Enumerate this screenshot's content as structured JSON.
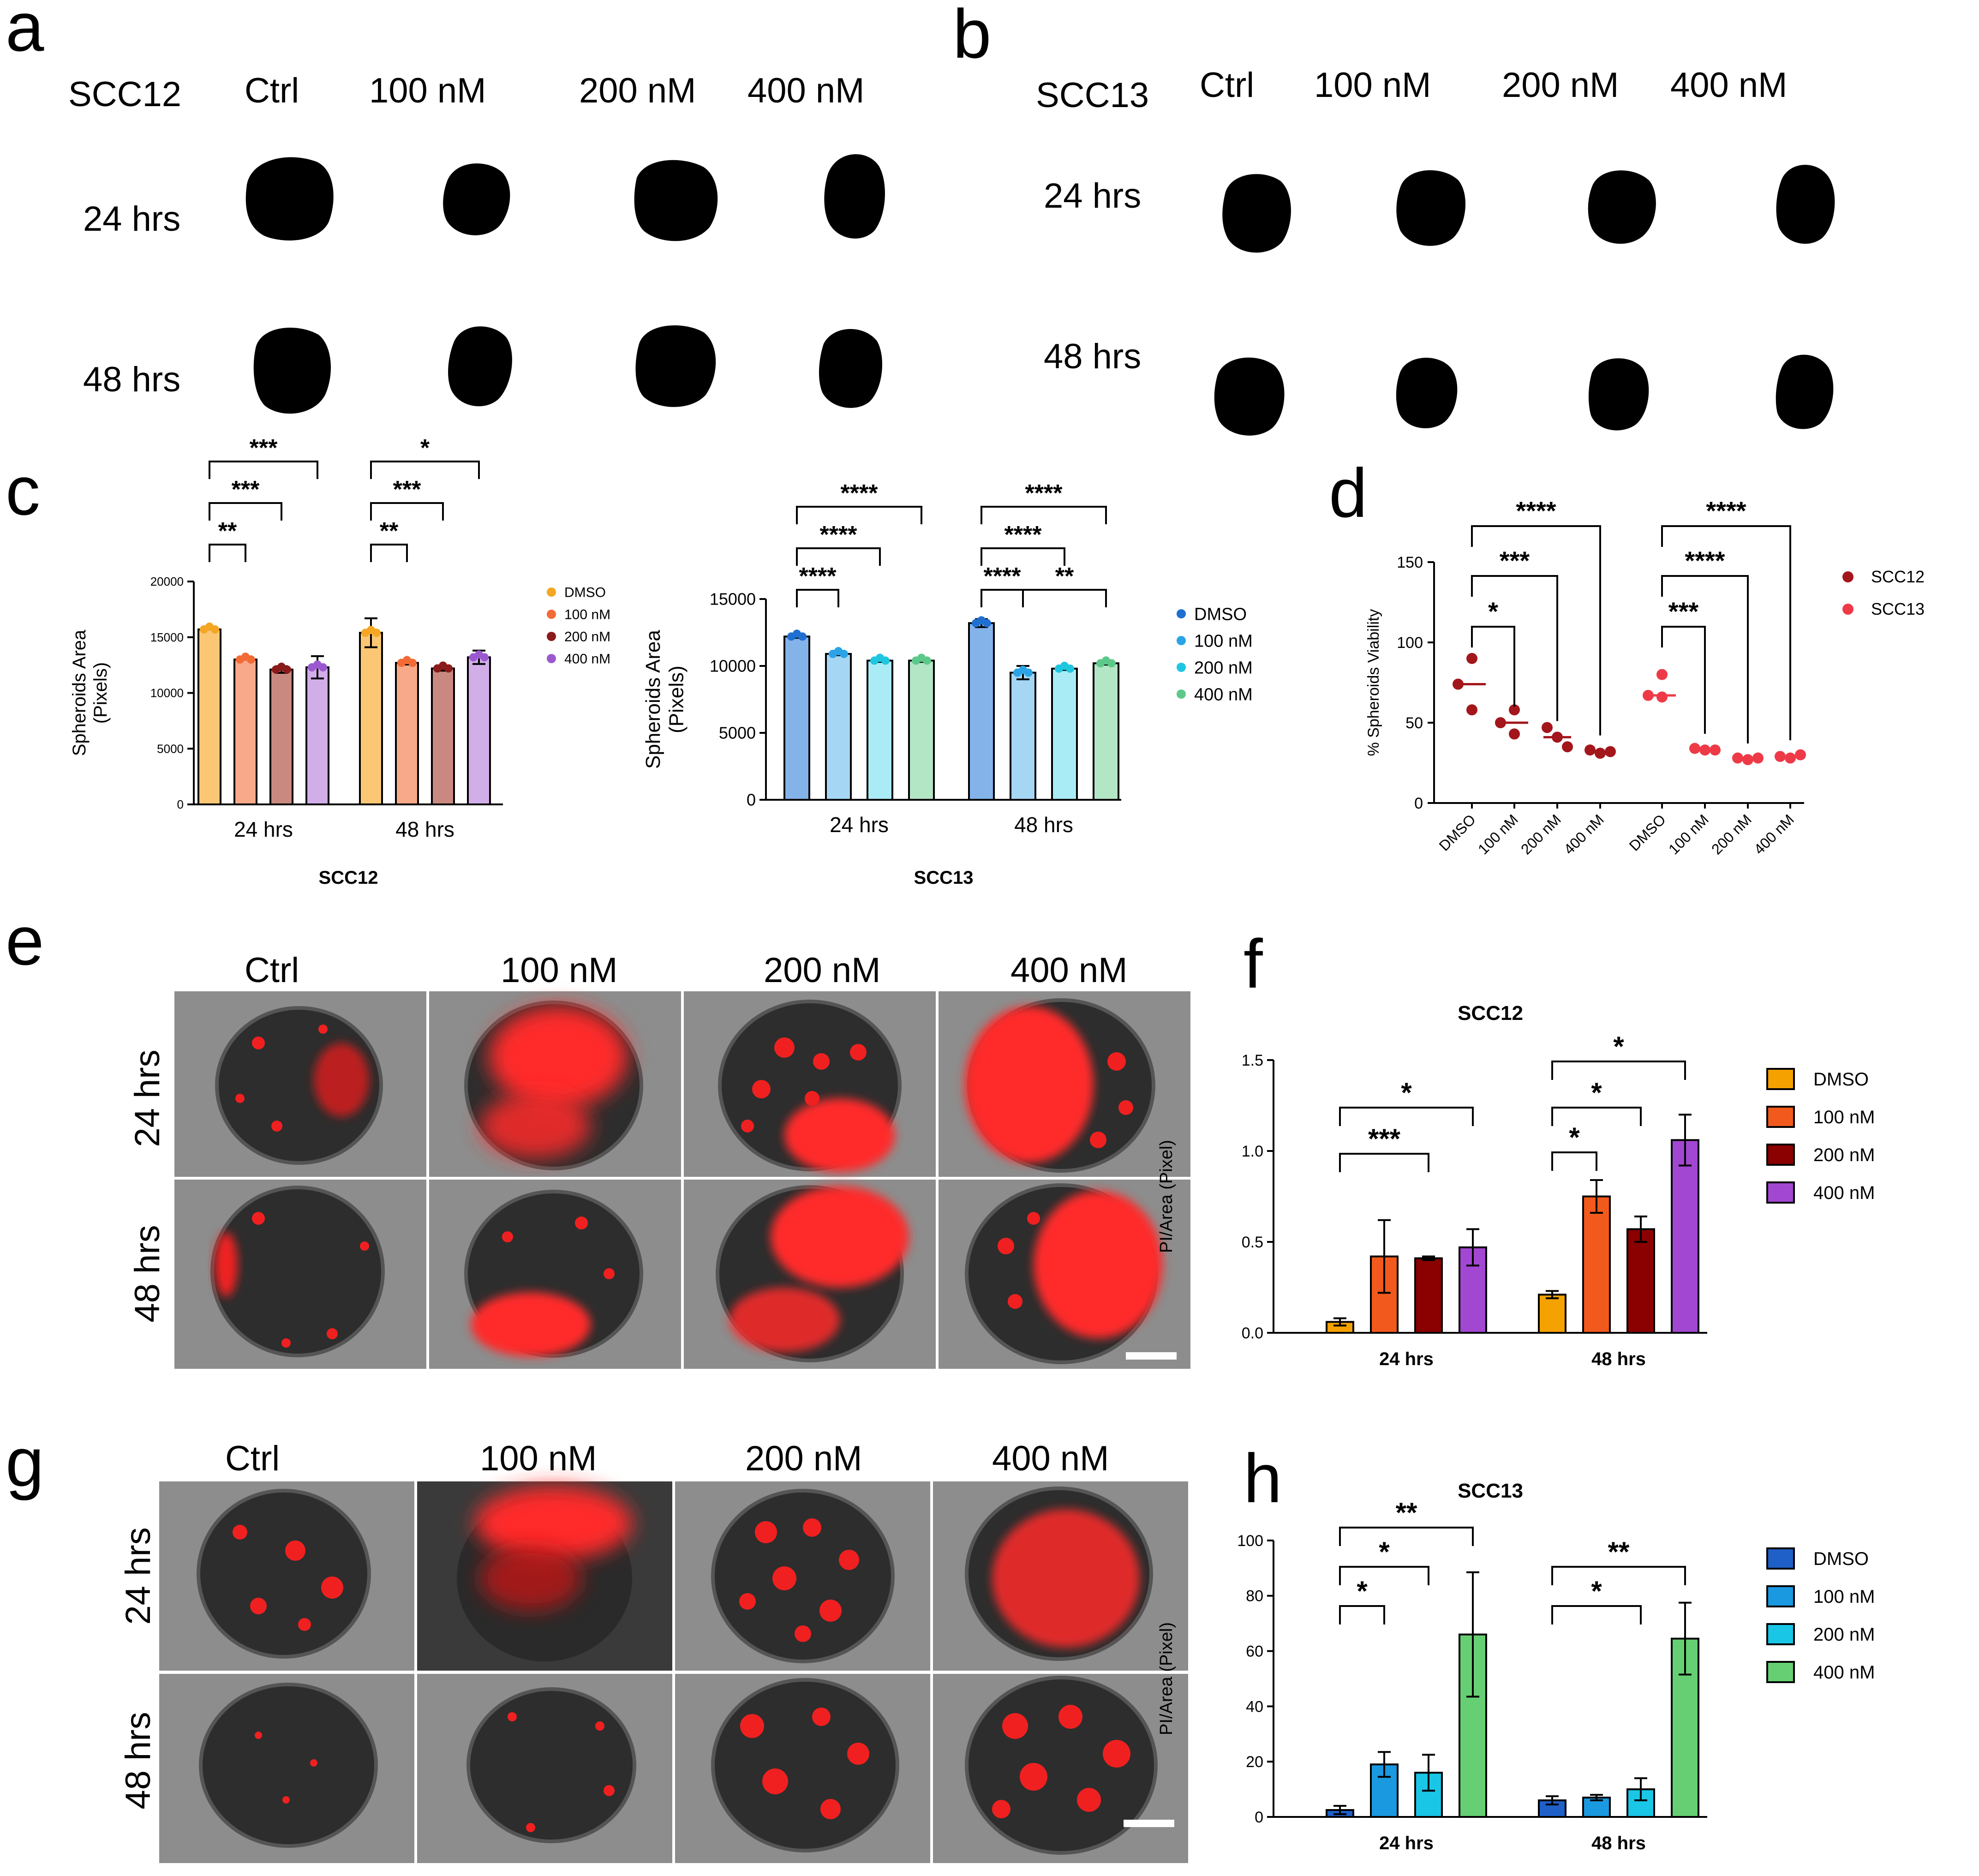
{
  "panels": {
    "a": {
      "letter": "a",
      "cell_line": "SCC12",
      "columns": [
        "Ctrl",
        "100 nM",
        "200 nM",
        "400 nM"
      ],
      "rows": [
        "24 hrs",
        "48 hrs"
      ]
    },
    "b": {
      "letter": "b",
      "cell_line": "SCC13",
      "columns": [
        "Ctrl",
        "100 nM",
        "200 nM",
        "400 nM"
      ],
      "rows": [
        "24 hrs",
        "48 hrs"
      ]
    },
    "c": {
      "letter": "c"
    },
    "d": {
      "letter": "d"
    },
    "e": {
      "letter": "e",
      "columns": [
        "Ctrl",
        "100 nM",
        "200 nM",
        "400 nM"
      ],
      "rows": [
        "24 hrs",
        "48 hrs"
      ]
    },
    "f": {
      "letter": "f"
    },
    "g": {
      "letter": "g",
      "columns": [
        "Ctrl",
        "100 nM",
        "200 nM",
        "400 nM"
      ],
      "rows": [
        "24 hrs",
        "48 hrs"
      ]
    },
    "h": {
      "letter": "h"
    }
  },
  "chart_data": [
    {
      "id": "c1",
      "type": "bar",
      "title": "SCC12",
      "xlabel": "",
      "ylabel": "Spheroids Area (Pixels)",
      "ylim": [
        0,
        20000
      ],
      "yticks": [
        0,
        5000,
        10000,
        15000,
        20000
      ],
      "categories": [
        "24 hrs",
        "48 hrs"
      ],
      "series": [
        {
          "name": "DMSO",
          "color": "#f5a623",
          "fill": "#fbc774",
          "values": [
            15700,
            15400
          ],
          "errors": [
            0,
            1300
          ]
        },
        {
          "name": "100 nM",
          "color": "#f26b35",
          "fill": "#f7a98a",
          "values": [
            13000,
            12700
          ],
          "errors": [
            0,
            150
          ]
        },
        {
          "name": "200 nM",
          "color": "#8b1a1a",
          "fill": "#c98980",
          "values": [
            12100,
            12200
          ],
          "errors": [
            300,
            200
          ]
        },
        {
          "name": "400 nM",
          "color": "#9b59d0",
          "fill": "#d2aee8",
          "values": [
            12300,
            13200
          ],
          "errors": [
            1000,
            600
          ]
        }
      ],
      "significance": [
        {
          "group": 0,
          "from": 0,
          "to": 1,
          "label": "**"
        },
        {
          "group": 0,
          "from": 0,
          "to": 2,
          "label": "***"
        },
        {
          "group": 0,
          "from": 0,
          "to": 3,
          "label": "***"
        },
        {
          "group": 1,
          "from": 0,
          "to": 1,
          "label": "**"
        },
        {
          "group": 1,
          "from": 0,
          "to": 2,
          "label": "***"
        },
        {
          "group": 1,
          "from": 0,
          "to": 3,
          "label": "*"
        }
      ],
      "legend": "right"
    },
    {
      "id": "c2",
      "type": "bar",
      "title": "SCC13",
      "xlabel": "",
      "ylabel": "Spheroids Area (Pixels)",
      "ylim": [
        0,
        15000
      ],
      "yticks": [
        0,
        5000,
        10000,
        15000
      ],
      "categories": [
        "24 hrs",
        "48 hrs"
      ],
      "series": [
        {
          "name": "DMSO",
          "color": "#1f6fd0",
          "fill": "#84b3ea",
          "values": [
            12200,
            13200
          ],
          "errors": [
            100,
            300
          ]
        },
        {
          "name": "100 nM",
          "color": "#2aa4e6",
          "fill": "#a5d6f4",
          "values": [
            10900,
            9500
          ],
          "errors": [
            100,
            500
          ]
        },
        {
          "name": "200 nM",
          "color": "#1fc6e0",
          "fill": "#a9ecf5",
          "values": [
            10400,
            9800
          ],
          "errors": [
            100,
            100
          ]
        },
        {
          "name": "400 nM",
          "color": "#5cc98a",
          "fill": "#b3e6c4",
          "values": [
            10400,
            10200
          ],
          "errors": [
            100,
            100
          ]
        }
      ],
      "significance": [
        {
          "group": 0,
          "from": 0,
          "to": 1,
          "label": "****"
        },
        {
          "group": 0,
          "from": 0,
          "to": 2,
          "label": "****"
        },
        {
          "group": 0,
          "from": 0,
          "to": 3,
          "label": "****"
        },
        {
          "group": 1,
          "from": 0,
          "to": 1,
          "label": "****"
        },
        {
          "group": 1,
          "from": 0,
          "to": 2,
          "label": "****"
        },
        {
          "group": 1,
          "from": 0,
          "to": 3,
          "label": "****"
        },
        {
          "group": 1,
          "from": 1,
          "to": 3,
          "label": "**"
        }
      ],
      "legend": "right"
    },
    {
      "id": "d",
      "type": "scatter",
      "title": "",
      "xlabel": "",
      "ylabel": "% Spheroids Viability",
      "ylim": [
        0,
        150
      ],
      "yticks": [
        0,
        50,
        100,
        150
      ],
      "categories": [
        "DMSO",
        "100 nM",
        "200 nM",
        "400 nM",
        "DMSO",
        "100 nM",
        "200 nM",
        "400 nM"
      ],
      "series": [
        {
          "name": "SCC12",
          "color": "#a3161b",
          "points": [
            [
              90,
              74,
              58
            ],
            [
              58,
              50,
              43
            ],
            [
              47,
              41,
              35
            ],
            [
              33,
              31,
              32
            ]
          ],
          "means": [
            74,
            50,
            41,
            32
          ]
        },
        {
          "name": "SCC13",
          "color": "#ee3a47",
          "points": [
            [
              80,
              67,
              66
            ],
            [
              34,
              33,
              33
            ],
            [
              28,
              27,
              28
            ],
            [
              29,
              28,
              30
            ]
          ],
          "means": [
            67,
            33,
            27,
            29
          ]
        }
      ],
      "significance": [
        {
          "from": 0,
          "to": 1,
          "label": "*"
        },
        {
          "from": 0,
          "to": 2,
          "label": "***"
        },
        {
          "from": 0,
          "to": 3,
          "label": "****"
        },
        {
          "from": 4,
          "to": 5,
          "label": "***"
        },
        {
          "from": 4,
          "to": 6,
          "label": "****"
        },
        {
          "from": 4,
          "to": 7,
          "label": "****"
        }
      ],
      "legend": "right"
    },
    {
      "id": "f",
      "type": "bar",
      "title": "SCC12",
      "xlabel": "",
      "ylabel": "PI/Area (Pixel)",
      "ylim": [
        0,
        1.5
      ],
      "yticks": [
        "0.0",
        "0.5",
        "1.0",
        "1.5"
      ],
      "categories": [
        "24 hrs",
        "48 hrs"
      ],
      "series": [
        {
          "name": "DMSO",
          "color": "#f5a100",
          "values": [
            0.06,
            0.21
          ],
          "errors": [
            0.02,
            0.02
          ]
        },
        {
          "name": "100 nM",
          "color": "#f25a1d",
          "values": [
            0.42,
            0.75
          ],
          "errors": [
            0.2,
            0.09
          ]
        },
        {
          "name": "200 nM",
          "color": "#8b0000",
          "values": [
            0.41,
            0.57
          ],
          "errors": [
            0.01,
            0.07
          ]
        },
        {
          "name": "400 nM",
          "color": "#a247d1",
          "values": [
            0.47,
            1.06
          ],
          "errors": [
            0.1,
            0.14
          ]
        }
      ],
      "significance": [
        {
          "group": 0,
          "from": 0,
          "to": 2,
          "label": "***"
        },
        {
          "group": 0,
          "from": 0,
          "to": 3,
          "label": "*"
        },
        {
          "group": 1,
          "from": 0,
          "to": 1,
          "label": "*"
        },
        {
          "group": 1,
          "from": 0,
          "to": 2,
          "label": "*"
        },
        {
          "group": 1,
          "from": 0,
          "to": 3,
          "label": "*"
        }
      ],
      "legend": "right"
    },
    {
      "id": "h",
      "type": "bar",
      "title": "SCC13",
      "xlabel": "",
      "ylabel": "PI/Area (Pixel)",
      "ylim": [
        0,
        100
      ],
      "yticks": [
        0,
        20,
        40,
        60,
        80,
        100
      ],
      "categories": [
        "24 hrs",
        "48 hrs"
      ],
      "series": [
        {
          "name": "DMSO",
          "color": "#1f5fc8",
          "values": [
            2.5,
            6
          ],
          "errors": [
            1.5,
            1.5
          ]
        },
        {
          "name": "100 nM",
          "color": "#1a99e0",
          "values": [
            19,
            7
          ],
          "errors": [
            4.5,
            1
          ]
        },
        {
          "name": "200 nM",
          "color": "#19c6e6",
          "values": [
            16,
            10
          ],
          "errors": [
            6.5,
            4
          ]
        },
        {
          "name": "400 nM",
          "color": "#66cf74",
          "values": [
            66,
            64.5
          ],
          "errors": [
            22.5,
            13
          ]
        }
      ],
      "significance": [
        {
          "group": 0,
          "from": 0,
          "to": 1,
          "label": "*"
        },
        {
          "group": 0,
          "from": 0,
          "to": 2,
          "label": "*"
        },
        {
          "group": 0,
          "from": 0,
          "to": 3,
          "label": "**"
        },
        {
          "group": 1,
          "from": 0,
          "to": 2,
          "label": "*"
        },
        {
          "group": 1,
          "from": 0,
          "to": 3,
          "label": "**"
        }
      ],
      "legend": "right"
    }
  ]
}
